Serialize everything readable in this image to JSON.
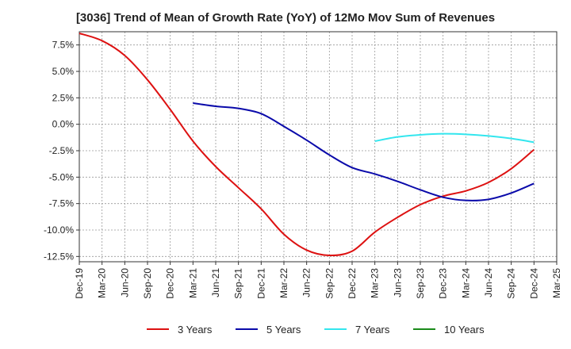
{
  "chart_data": {
    "type": "line",
    "title": "[3036]  Trend of Mean of Growth Rate (YoY) of 12Mo Mov Sum of Revenues",
    "xlabel": "",
    "ylabel": "",
    "ylim": [
      -13.0,
      8.75
    ],
    "grid": true,
    "legend_position": "bottom",
    "y_ticks": [
      {
        "value": 7.5,
        "label": "7.5%"
      },
      {
        "value": 5.0,
        "label": "5.0%"
      },
      {
        "value": 2.5,
        "label": "2.5%"
      },
      {
        "value": 0.0,
        "label": "0.0%"
      },
      {
        "value": -2.5,
        "label": "-2.5%"
      },
      {
        "value": -5.0,
        "label": "-5.0%"
      },
      {
        "value": -7.5,
        "label": "-7.5%"
      },
      {
        "value": -10.0,
        "label": "-10.0%"
      },
      {
        "value": -12.5,
        "label": "-12.5%"
      }
    ],
    "x_ticks": [
      "Dec-19",
      "Mar-20",
      "Jun-20",
      "Sep-20",
      "Dec-20",
      "Mar-21",
      "Jun-21",
      "Sep-21",
      "Dec-21",
      "Mar-22",
      "Jun-22",
      "Sep-22",
      "Dec-22",
      "Mar-23",
      "Jun-23",
      "Sep-23",
      "Dec-23",
      "Mar-24",
      "Jun-24",
      "Sep-24",
      "Dec-24",
      "Mar-25"
    ],
    "series": [
      {
        "name": "3 Years",
        "color": "#dd1111",
        "points": [
          [
            0,
            8.6
          ],
          [
            1,
            7.9
          ],
          [
            2,
            6.5
          ],
          [
            3,
            4.2
          ],
          [
            4,
            1.4
          ],
          [
            5,
            -1.6
          ],
          [
            6,
            -4.0
          ],
          [
            7,
            -6.0
          ],
          [
            8,
            -8.0
          ],
          [
            9,
            -10.4
          ],
          [
            10,
            -11.9
          ],
          [
            11,
            -12.4
          ],
          [
            12,
            -12.0
          ],
          [
            13,
            -10.2
          ],
          [
            14,
            -8.8
          ],
          [
            15,
            -7.6
          ],
          [
            16,
            -6.8
          ],
          [
            17,
            -6.3
          ],
          [
            18,
            -5.5
          ],
          [
            19,
            -4.2
          ],
          [
            20,
            -2.4
          ]
        ]
      },
      {
        "name": "5 Years",
        "color": "#0a0aaa",
        "points": [
          [
            5,
            2.0
          ],
          [
            6,
            1.7
          ],
          [
            7,
            1.5
          ],
          [
            8,
            1.0
          ],
          [
            9,
            -0.2
          ],
          [
            10,
            -1.5
          ],
          [
            11,
            -2.9
          ],
          [
            12,
            -4.1
          ],
          [
            13,
            -4.7
          ],
          [
            14,
            -5.4
          ],
          [
            15,
            -6.2
          ],
          [
            16,
            -6.9
          ],
          [
            17,
            -7.2
          ],
          [
            18,
            -7.1
          ],
          [
            19,
            -6.5
          ],
          [
            20,
            -5.6
          ]
        ]
      },
      {
        "name": "7 Years",
        "color": "#33e6ee",
        "points": [
          [
            13,
            -1.6
          ],
          [
            14,
            -1.2
          ],
          [
            15,
            -1.0
          ],
          [
            16,
            -0.9
          ],
          [
            17,
            -0.95
          ],
          [
            18,
            -1.1
          ],
          [
            19,
            -1.35
          ],
          [
            20,
            -1.7
          ]
        ]
      },
      {
        "name": "10 Years",
        "color": "#1a8a1a",
        "points": []
      }
    ]
  }
}
